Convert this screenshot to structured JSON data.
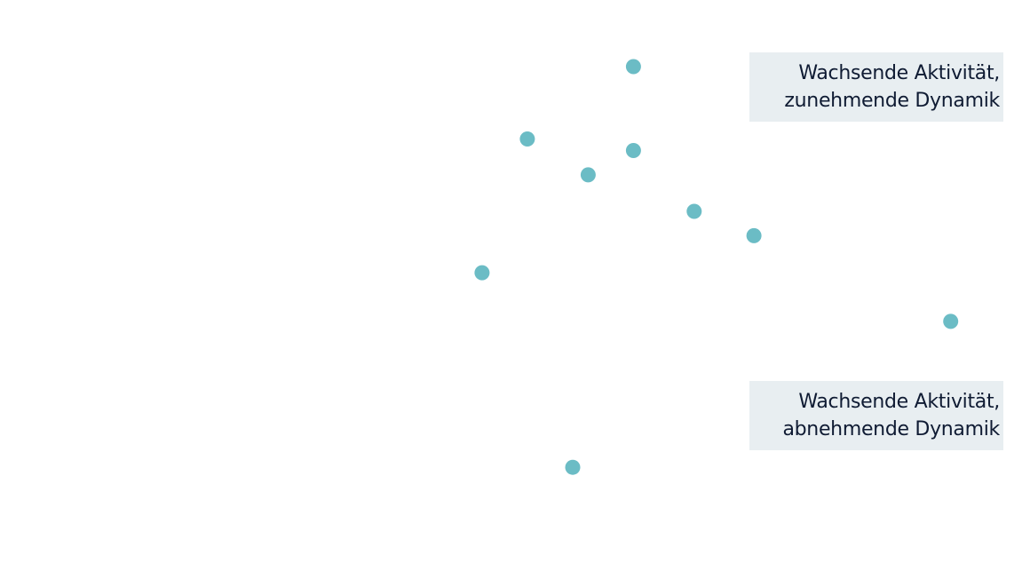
{
  "chart_data": {
    "type": "scatter",
    "title": "",
    "xlabel": "",
    "ylabel": "",
    "grid": false,
    "xlim": [
      0,
      100
    ],
    "ylim": [
      0,
      100
    ],
    "points": [
      {
        "x": 61.5,
        "y": 88.5
      },
      {
        "x": 51.2,
        "y": 76.0
      },
      {
        "x": 61.5,
        "y": 74.0
      },
      {
        "x": 57.1,
        "y": 69.8
      },
      {
        "x": 67.4,
        "y": 63.5
      },
      {
        "x": 73.2,
        "y": 59.3
      },
      {
        "x": 46.8,
        "y": 52.9
      },
      {
        "x": 92.3,
        "y": 44.5
      },
      {
        "x": 55.6,
        "y": 19.3
      }
    ],
    "marker_color": "#6bbcc5",
    "annotations": [
      {
        "id": "top",
        "lines": [
          "Wachsende Aktivität,",
          "zunehmende Dynamik"
        ]
      },
      {
        "id": "bottom",
        "lines": [
          "Wachsende Aktivität,",
          "abnehmende Dynamik"
        ]
      }
    ]
  }
}
